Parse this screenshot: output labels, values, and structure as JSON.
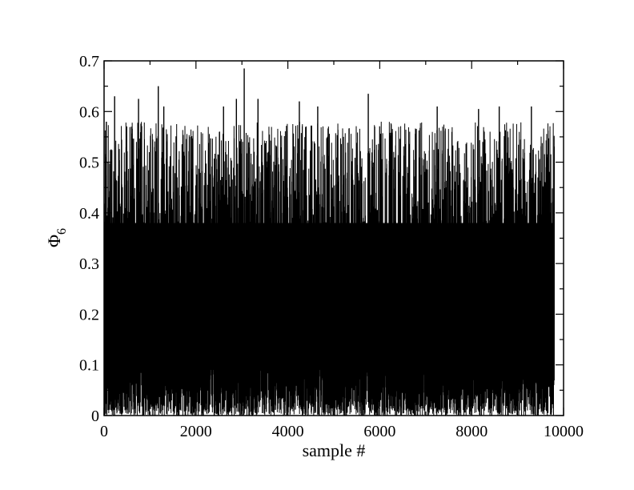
{
  "chart_data": {
    "type": "line",
    "title": "",
    "xlabel": "sample #",
    "ylabel": {
      "symbol": "Φ",
      "subscript": "6"
    },
    "xlim": [
      0,
      10000
    ],
    "ylim": [
      0,
      0.7
    ],
    "x_ticks": [
      0,
      2000,
      4000,
      6000,
      8000,
      10000
    ],
    "y_ticks": [
      0,
      0.1,
      0.2,
      0.3,
      0.4,
      0.5,
      0.6,
      0.7
    ],
    "x_tick_labels": [
      "0",
      "2000",
      "4000",
      "6000",
      "8000",
      "10000"
    ],
    "y_tick_labels": [
      "0",
      "0.1",
      "0.2",
      "0.3",
      "0.4",
      "0.5",
      "0.6",
      "0.7"
    ],
    "grid": false,
    "legend": "none",
    "series": [
      {
        "color": "#000000",
        "x_start": 0,
        "x_end": 9800,
        "y_min": 0.0,
        "y_max": 0.685,
        "peaks": [
          {
            "x": 50,
            "y": 0.58
          },
          {
            "x": 230,
            "y": 0.63
          },
          {
            "x": 450,
            "y": 0.455
          },
          {
            "x": 750,
            "y": 0.625
          },
          {
            "x": 1180,
            "y": 0.65
          },
          {
            "x": 1300,
            "y": 0.61
          },
          {
            "x": 2600,
            "y": 0.61
          },
          {
            "x": 2880,
            "y": 0.625
          },
          {
            "x": 3050,
            "y": 0.685
          },
          {
            "x": 3350,
            "y": 0.625
          },
          {
            "x": 4250,
            "y": 0.62
          },
          {
            "x": 4650,
            "y": 0.61
          },
          {
            "x": 5750,
            "y": 0.635
          },
          {
            "x": 7250,
            "y": 0.61
          },
          {
            "x": 8150,
            "y": 0.605
          },
          {
            "x": 8600,
            "y": 0.61
          },
          {
            "x": 9300,
            "y": 0.61
          }
        ]
      }
    ]
  }
}
